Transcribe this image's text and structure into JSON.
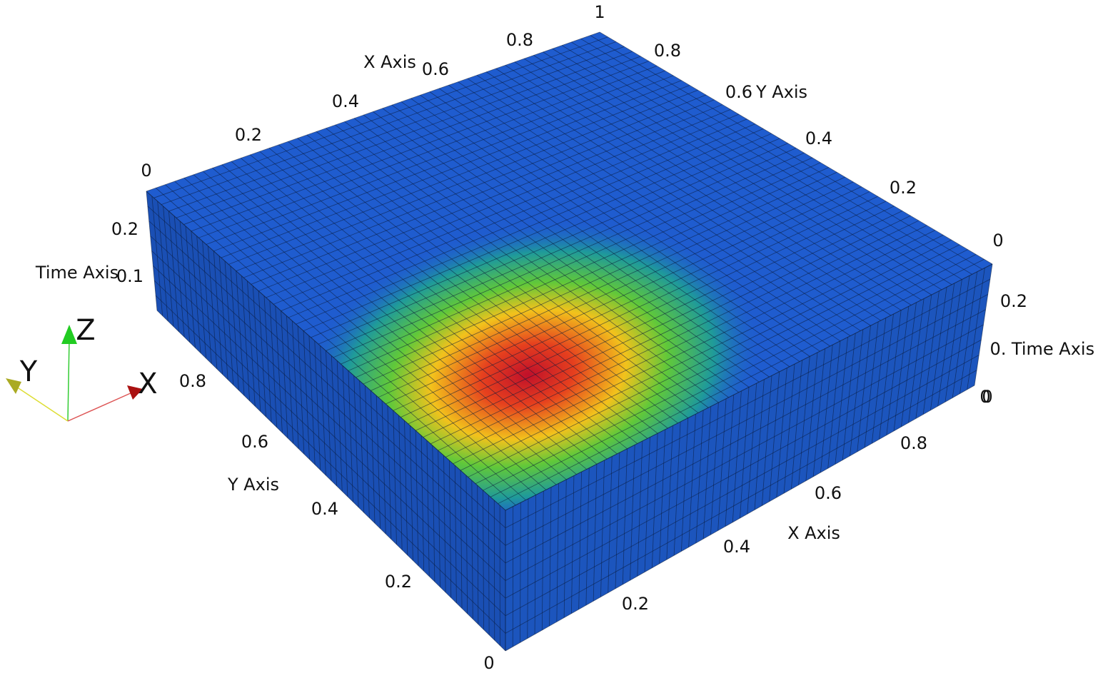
{
  "axes": {
    "x_top": {
      "title": "X Axis",
      "ticks": [
        0,
        0.2,
        0.4,
        0.6,
        0.8,
        1
      ]
    },
    "y_back": {
      "title": "Y Axis",
      "ticks": [
        0.8,
        0.6,
        0.4,
        0.2,
        0
      ]
    },
    "time_right": {
      "title": "Time Axis",
      "ticks": [
        0.2,
        "0.",
        0,
        0
      ]
    },
    "time_left": {
      "title": "Time Axis",
      "ticks": [
        0.2,
        0.1
      ]
    },
    "y_front": {
      "title": "Y Axis",
      "ticks": [
        0.8,
        0.6,
        0.4,
        0.2,
        0
      ]
    },
    "x_front": {
      "title": "X Axis",
      "ticks": [
        0.2,
        0.4,
        0.6,
        0.8
      ]
    }
  },
  "orientation": {
    "x": "X",
    "y": "Y",
    "z": "Z"
  }
}
